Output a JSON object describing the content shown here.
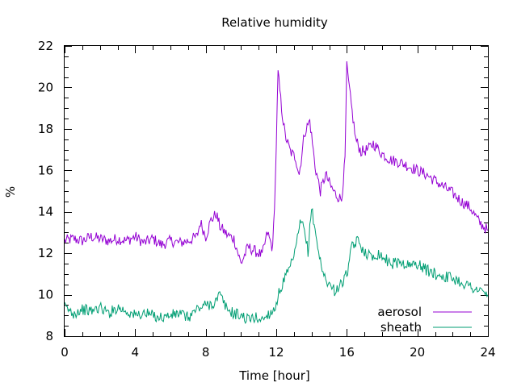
{
  "chart_data": {
    "type": "line",
    "title": "Relative humidity",
    "xlabel": "Time [hour]",
    "ylabel": "%",
    "xlim": [
      0,
      24
    ],
    "ylim": [
      8,
      22
    ],
    "x_ticks": [
      0,
      4,
      8,
      12,
      16,
      20,
      24
    ],
    "y_ticks": [
      8,
      10,
      12,
      14,
      16,
      18,
      20,
      22
    ],
    "grid": false,
    "legend_position": "bottom-right",
    "series": [
      {
        "name": "aerosol",
        "color": "#9400d3",
        "x": [
          0,
          0.5,
          1,
          1.5,
          2,
          2.5,
          3,
          3.5,
          4,
          4.5,
          5,
          5.5,
          6,
          6.5,
          7,
          7.5,
          7.7,
          8,
          8.3,
          8.6,
          8.8,
          9.2,
          9.6,
          10,
          10.4,
          10.8,
          11.2,
          11.5,
          11.8,
          11.95,
          12.1,
          12.3,
          12.5,
          12.8,
          13.1,
          13.3,
          13.6,
          13.9,
          14.2,
          14.5,
          14.8,
          15.1,
          15.4,
          15.7,
          15.9,
          16.0,
          16.2,
          16.5,
          16.8,
          17.2,
          17.5,
          18,
          18.5,
          19,
          19.5,
          20,
          20.5,
          21,
          21.5,
          22,
          22.5,
          23,
          23.5,
          24
        ],
        "values": [
          12.6,
          12.7,
          12.6,
          12.8,
          12.7,
          12.6,
          12.7,
          12.6,
          12.8,
          12.5,
          12.7,
          12.4,
          12.6,
          12.5,
          12.6,
          12.8,
          13.5,
          12.8,
          13.6,
          13.9,
          13.3,
          12.9,
          12.7,
          11.5,
          12.3,
          12.1,
          11.9,
          13.0,
          12.2,
          15.5,
          20.7,
          19.0,
          17.7,
          16.9,
          16.6,
          15.8,
          17.8,
          18.4,
          16.2,
          15.0,
          15.8,
          15.2,
          14.8,
          14.6,
          16.5,
          21.0,
          19.5,
          17.5,
          16.9,
          17.0,
          17.3,
          16.8,
          16.5,
          16.4,
          16.2,
          16.0,
          15.8,
          15.5,
          15.2,
          14.9,
          14.5,
          14.2,
          13.5,
          13.1
        ]
      },
      {
        "name": "sheath",
        "color": "#009e73",
        "x": [
          0,
          0.5,
          1,
          1.5,
          2,
          2.5,
          3,
          3.5,
          4,
          4.5,
          5,
          5.5,
          6,
          6.5,
          7,
          7.5,
          8,
          8.5,
          8.8,
          9.2,
          9.6,
          10,
          10.4,
          10.8,
          11.2,
          11.6,
          11.9,
          12.2,
          12.5,
          12.8,
          13.1,
          13.4,
          13.6,
          13.8,
          14.0,
          14.3,
          14.6,
          15,
          15.3,
          15.7,
          16.0,
          16.3,
          16.6,
          17,
          17.4,
          17.8,
          18.2,
          18.6,
          19,
          19.5,
          20,
          20.5,
          21,
          21.5,
          22,
          22.5,
          23,
          23.5,
          24
        ],
        "values": [
          9.4,
          9.1,
          9.3,
          9.2,
          9.4,
          9.1,
          9.4,
          9.2,
          9.0,
          9.1,
          9.0,
          8.9,
          9.0,
          9.1,
          8.9,
          9.3,
          9.5,
          9.6,
          10.0,
          9.3,
          9.1,
          9.0,
          8.8,
          8.9,
          8.8,
          9.1,
          9.3,
          10.2,
          10.8,
          11.3,
          12.2,
          13.6,
          13.0,
          12.1,
          14.2,
          12.6,
          11.1,
          10.5,
          10.2,
          10.5,
          11.0,
          12.3,
          12.6,
          12.1,
          11.8,
          12.0,
          11.7,
          11.5,
          11.6,
          11.4,
          11.5,
          11.2,
          11.0,
          10.9,
          10.8,
          10.6,
          10.4,
          10.2,
          10.0
        ]
      }
    ]
  }
}
